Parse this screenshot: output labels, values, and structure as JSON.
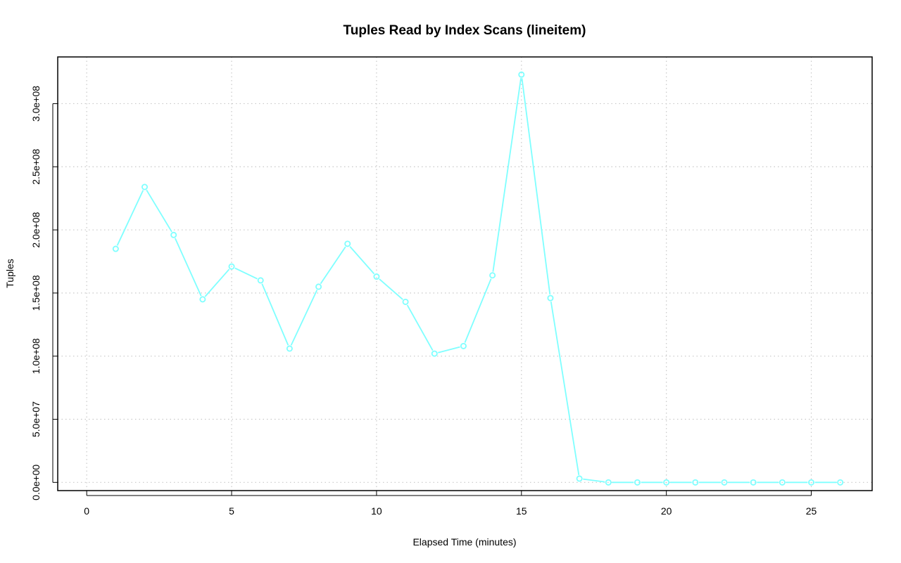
{
  "chart_data": {
    "type": "line",
    "title": "Tuples Read by Index Scans (lineitem)",
    "xlabel": "Elapsed Time (minutes)",
    "ylabel": "Tuples",
    "xlim": [
      -1,
      27.1
    ],
    "ylim": [
      -6500000,
      337000000
    ],
    "x_ticks": [
      0,
      5,
      10,
      15,
      20,
      25
    ],
    "x_tick_labels": [
      "0",
      "5",
      "10",
      "15",
      "20",
      "25"
    ],
    "y_ticks": [
      0,
      50000000,
      100000000,
      150000000,
      200000000,
      250000000,
      300000000
    ],
    "y_tick_labels": [
      "0.0e+00",
      "5.0e+07",
      "1.0e+08",
      "1.5e+08",
      "2.0e+08",
      "2.5e+08",
      "3.0e+08"
    ],
    "grid": true,
    "marker": "open-circle",
    "color": "#7fffff",
    "x": [
      1,
      2,
      3,
      4,
      5,
      6,
      7,
      8,
      9,
      10,
      11,
      12,
      13,
      14,
      15,
      16,
      17,
      18,
      19,
      20,
      21,
      22,
      23,
      24,
      25,
      26
    ],
    "y": [
      185000000,
      234000000,
      196000000,
      145000000,
      171000000,
      160000000,
      106000000,
      155000000,
      189000000,
      163000000,
      143000000,
      102000000,
      108000000,
      164000000,
      323000000,
      146000000,
      3000000,
      0,
      0,
      0,
      0,
      0,
      0,
      0,
      0,
      0
    ]
  }
}
